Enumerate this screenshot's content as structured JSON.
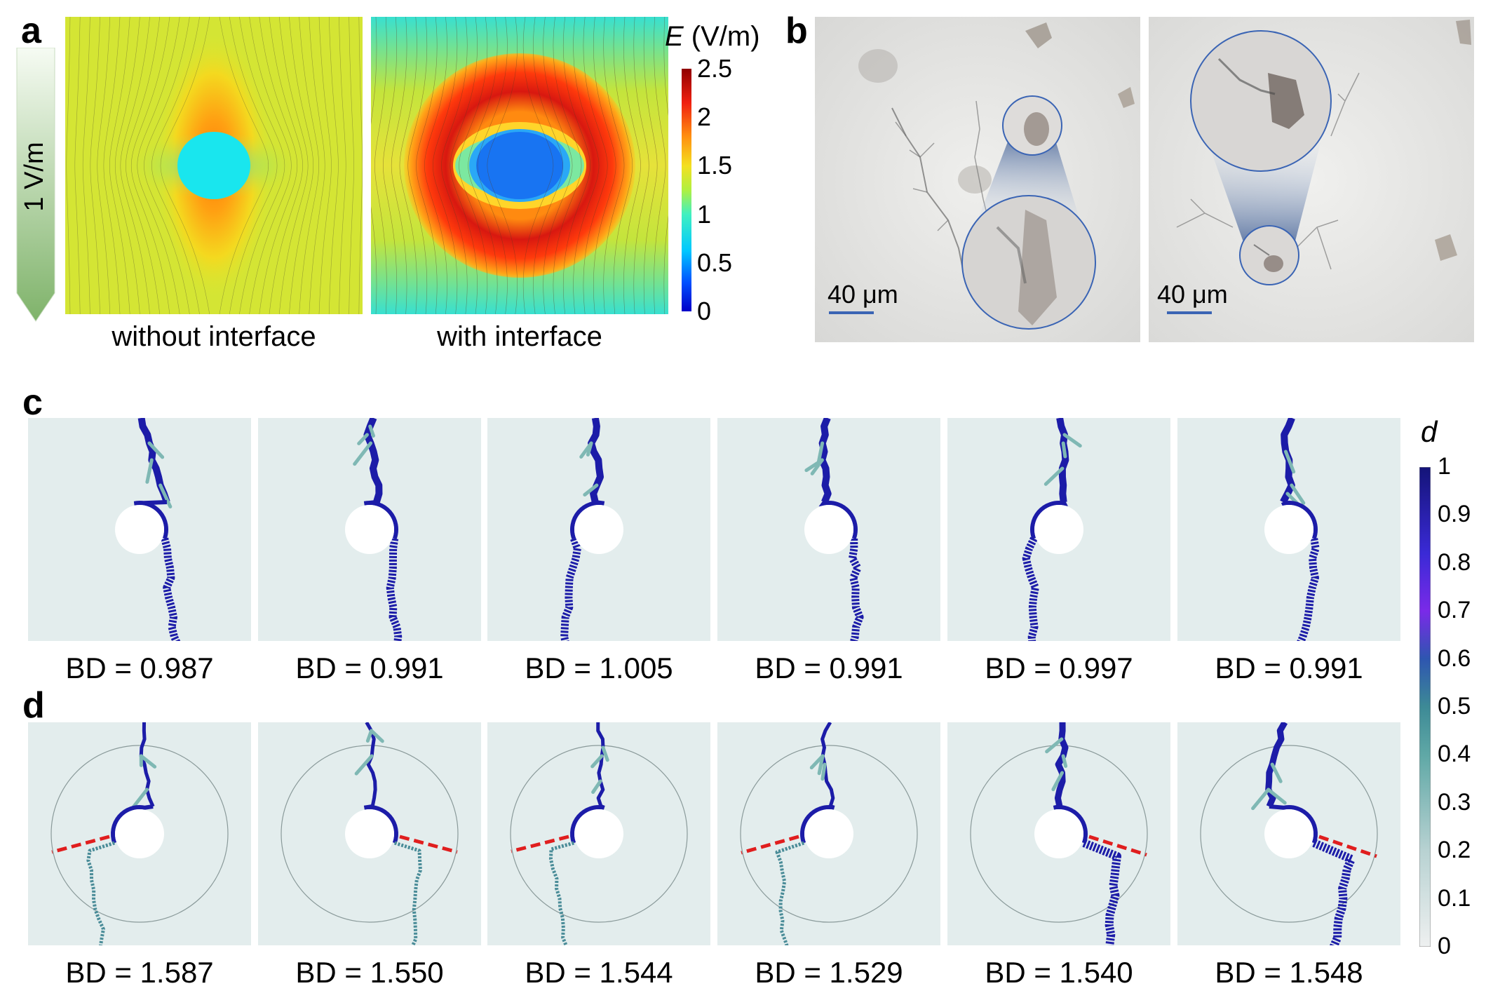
{
  "panel_a": {
    "letter": "a",
    "arrow_label": "1 V/m",
    "left_caption": "without interface",
    "right_caption": "with interface",
    "colorbar": {
      "title_italic": "E",
      "title_unit": " (V/m)",
      "ticks": [
        "2.5",
        "2",
        "1.5",
        "1",
        "0.5",
        "0"
      ]
    }
  },
  "panel_b": {
    "letter": "b",
    "scale_left": "40 μm",
    "scale_right": "40 μm"
  },
  "panel_c": {
    "letter": "c",
    "bd_values": [
      "BD = 0.987",
      "BD = 0.991",
      "BD = 1.005",
      "BD = 0.991",
      "BD = 0.997",
      "BD = 0.991"
    ]
  },
  "panel_d": {
    "letter": "d",
    "bd_values": [
      "BD = 1.587",
      "BD = 1.550",
      "BD = 1.544",
      "BD = 1.529",
      "BD = 1.540",
      "BD = 1.548"
    ]
  },
  "colorbar_d": {
    "title": "d",
    "ticks": [
      "1",
      "0.9",
      "0.8",
      "0.7",
      "0.6",
      "0.5",
      "0.4",
      "0.3",
      "0.2",
      "0.1",
      "0"
    ]
  },
  "colors": {
    "tree": "#1c1ca8",
    "dashed": "#e01e1e",
    "sim_bg": "#e3eded",
    "inclusion": "#00e5ee"
  }
}
